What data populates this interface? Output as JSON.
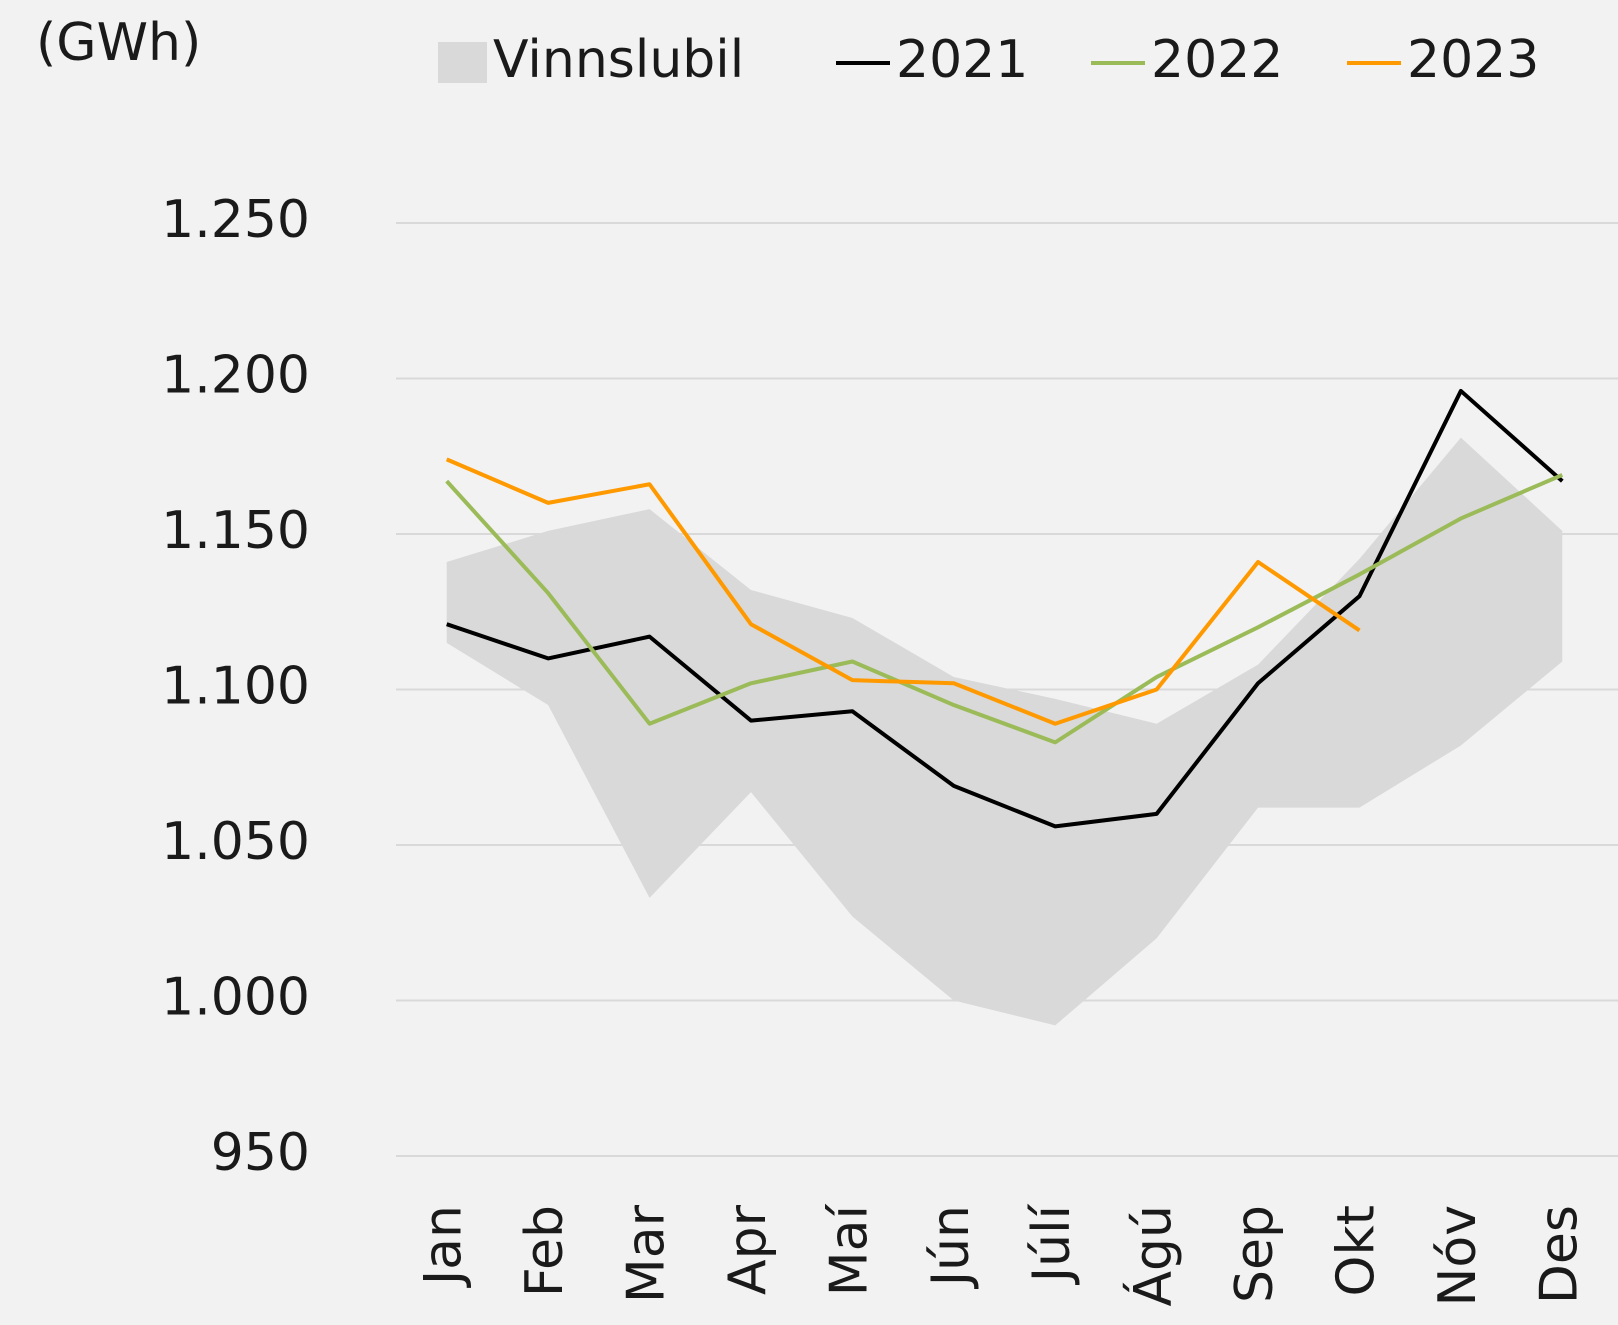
{
  "chart_data": {
    "type": "line",
    "y_label": "(GWh)",
    "categories": [
      "Jan",
      "Feb",
      "Mar",
      "Apr",
      "Maí",
      "Jún",
      "Júlí",
      "Ágú",
      "Sep",
      "Okt",
      "Nóv",
      "Des"
    ],
    "band": {
      "name": "Vinnslubil",
      "color": "#d9d9d9",
      "upper": [
        1141,
        1151,
        1158,
        1132,
        1123,
        1104,
        1097,
        1089,
        1108,
        1142,
        1181,
        1151
      ],
      "lower": [
        1115,
        1095,
        1033,
        1067,
        1027,
        1000,
        992,
        1020,
        1062,
        1062,
        1082,
        1109
      ]
    },
    "series": [
      {
        "name": "2021",
        "color": "#000000",
        "values": [
          1121,
          1110,
          1117,
          1090,
          1093,
          1069,
          1056,
          1060,
          1102,
          1130,
          1196,
          1167
        ]
      },
      {
        "name": "2022",
        "color": "#9bbb59",
        "values": [
          1167,
          1131,
          1089,
          1102,
          1109,
          1095,
          1083,
          1104,
          1120,
          1137,
          1155,
          1169
        ]
      },
      {
        "name": "2023",
        "color": "#ff9900",
        "values": [
          1174,
          1160,
          1166,
          1121,
          1103,
          1102,
          1089,
          1100,
          1141,
          1119,
          null,
          null
        ]
      }
    ],
    "ylim": [
      950,
      1250
    ],
    "yticks": [
      950,
      {
        "value": 1000,
        "label": "1.000"
      },
      {
        "value": 1050,
        "label": "1.050"
      },
      {
        "value": 1100,
        "label": "1.100"
      },
      {
        "value": 1150,
        "label": "1.150"
      },
      {
        "value": 1200,
        "label": "1.200"
      },
      {
        "value": 1250,
        "label": "1.250"
      }
    ],
    "grid": true
  }
}
